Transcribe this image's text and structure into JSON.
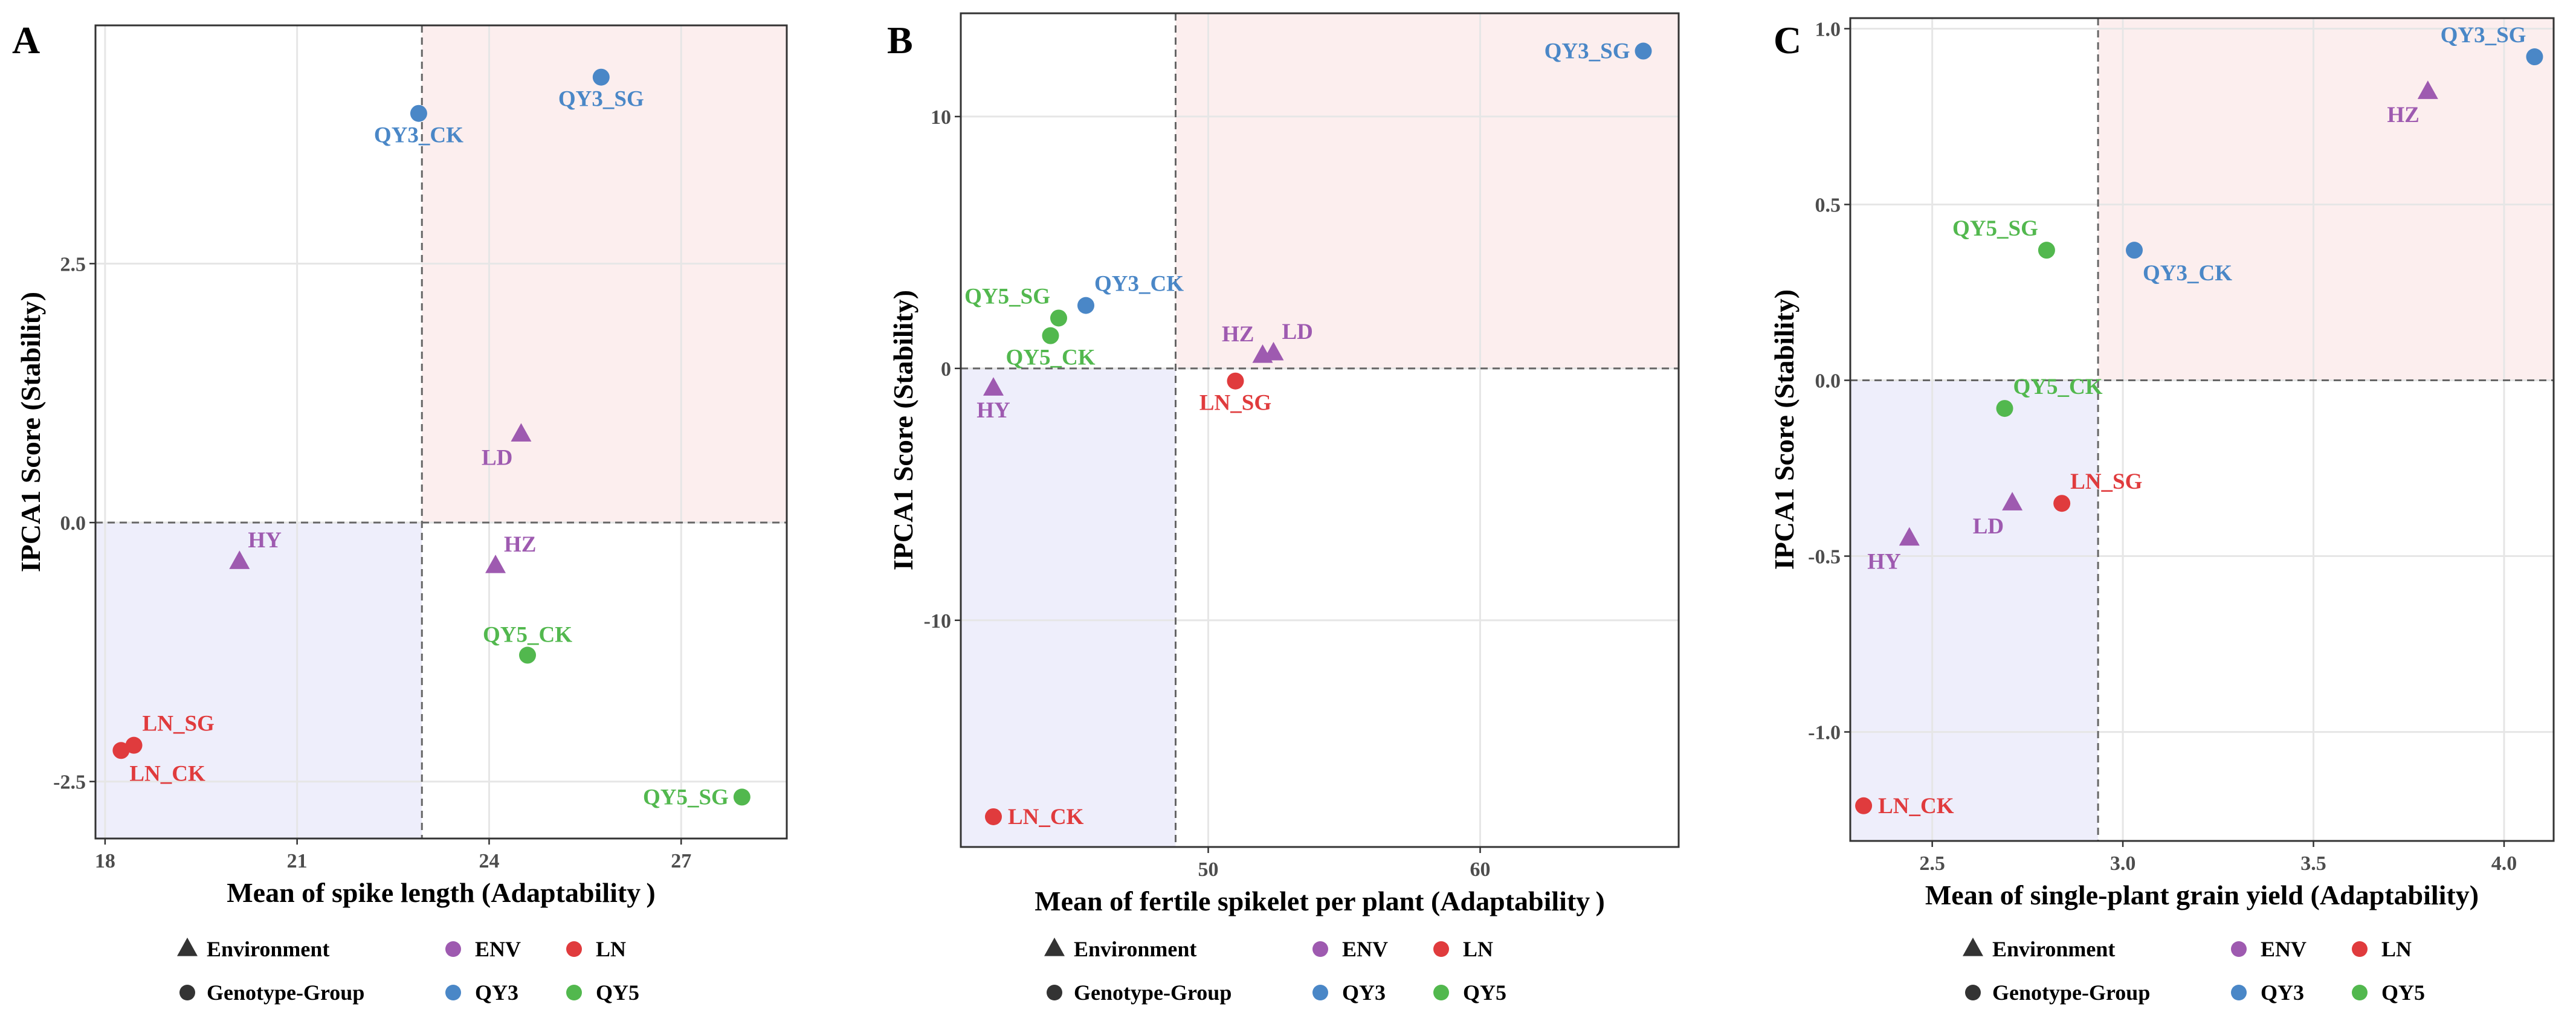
{
  "colors": {
    "ENV": "#9E5AB0",
    "QY3": "#4A87C7",
    "QY5": "#52B84E",
    "LN": "#E03B3D",
    "quad_pos": "#FCEEEE",
    "quad_neg": "#EEEEFB",
    "grid": "#E6E6E6",
    "tick_text": "#4d4d4d"
  },
  "legend": {
    "shape_entries": [
      {
        "label": "Environment",
        "shape": "triangle"
      },
      {
        "label": "Genotype-Group",
        "shape": "circle"
      }
    ],
    "color_entries_row1": [
      {
        "label": "ENV",
        "group": "ENV"
      },
      {
        "label": "LN",
        "group": "LN"
      }
    ],
    "color_entries_row2": [
      {
        "label": "QY3",
        "group": "QY3"
      },
      {
        "label": "QY5",
        "group": "QY5"
      }
    ]
  },
  "chart_data": [
    {
      "panel": "A",
      "type": "scatter",
      "xlabel": "Mean of spike length (Adaptability )",
      "ylabel": "IPCA1 Score (Stability)",
      "xlim": [
        17.85,
        28.65
      ],
      "ylim": [
        -3.05,
        4.8
      ],
      "xticks": [
        18,
        21,
        24,
        27
      ],
      "xtick_labels": [
        "18",
        "21",
        "24",
        "27"
      ],
      "yticks": [
        -2.5,
        0.0,
        2.5
      ],
      "ytick_labels": [
        "-2.5",
        "0.0",
        "2.5"
      ],
      "vline": 22.95,
      "hline": 0,
      "points": [
        {
          "label": "QY3_CK",
          "x": 22.9,
          "y": 3.95,
          "shape": "circle",
          "group": "QY3",
          "lpos": "below"
        },
        {
          "label": "QY3_SG",
          "x": 25.75,
          "y": 4.3,
          "shape": "circle",
          "group": "QY3",
          "lpos": "below"
        },
        {
          "label": "LD",
          "x": 24.5,
          "y": 0.85,
          "shape": "triangle",
          "group": "ENV",
          "lpos": "below-left"
        },
        {
          "label": "HY",
          "x": 20.1,
          "y": -0.38,
          "shape": "triangle",
          "group": "ENV",
          "lpos": "above-right"
        },
        {
          "label": "HZ",
          "x": 24.1,
          "y": -0.42,
          "shape": "triangle",
          "group": "ENV",
          "lpos": "above-right"
        },
        {
          "label": "QY5_CK",
          "x": 24.6,
          "y": -1.28,
          "shape": "circle",
          "group": "QY5",
          "lpos": "above"
        },
        {
          "label": "LN_SG",
          "x": 18.45,
          "y": -2.15,
          "shape": "circle",
          "group": "LN",
          "lpos": "above-right"
        },
        {
          "label": "LN_CK",
          "x": 18.25,
          "y": -2.2,
          "shape": "circle",
          "group": "LN",
          "lpos": "below-right"
        },
        {
          "label": "QY5_SG",
          "x": 27.95,
          "y": -2.65,
          "shape": "circle",
          "group": "QY5",
          "lpos": "left"
        }
      ]
    },
    {
      "panel": "B",
      "type": "scatter",
      "xlabel": "Mean of fertile spikelet per plant (Adaptability )",
      "ylabel": "IPCA1 Score (Stability)",
      "xlim": [
        40.9,
        67.3
      ],
      "ylim": [
        -19.0,
        14.1
      ],
      "xticks": [
        50,
        60
      ],
      "xtick_labels": [
        "50",
        "60"
      ],
      "yticks": [
        -10,
        0,
        10
      ],
      "ytick_labels": [
        "-10",
        "0",
        "10"
      ],
      "vline": 48.8,
      "hline": 0,
      "points": [
        {
          "label": "QY3_SG",
          "x": 66.0,
          "y": 12.6,
          "shape": "circle",
          "group": "QY3",
          "lpos": "left"
        },
        {
          "label": "QY3_CK",
          "x": 45.5,
          "y": 2.5,
          "shape": "circle",
          "group": "QY3",
          "lpos": "above-right"
        },
        {
          "label": "QY5_SG",
          "x": 44.5,
          "y": 2.0,
          "shape": "circle",
          "group": "QY5",
          "lpos": "above-left"
        },
        {
          "label": "QY5_CK",
          "x": 44.2,
          "y": 1.3,
          "shape": "circle",
          "group": "QY5",
          "lpos": "below"
        },
        {
          "label": "HZ",
          "x": 52.0,
          "y": 0.5,
          "shape": "triangle",
          "group": "ENV",
          "lpos": "above-left"
        },
        {
          "label": "LD",
          "x": 52.4,
          "y": 0.6,
          "shape": "triangle",
          "group": "ENV",
          "lpos": "above-right"
        },
        {
          "label": "HY",
          "x": 42.1,
          "y": -0.8,
          "shape": "triangle",
          "group": "ENV",
          "lpos": "below"
        },
        {
          "label": "LN_SG",
          "x": 51.0,
          "y": -0.5,
          "shape": "circle",
          "group": "LN",
          "lpos": "below"
        },
        {
          "label": "LN_CK",
          "x": 42.1,
          "y": -17.8,
          "shape": "circle",
          "group": "LN",
          "lpos": "right"
        }
      ]
    },
    {
      "panel": "C",
      "type": "scatter",
      "xlabel": "Mean of single-plant grain yield (Adaptability)",
      "ylabel": "IPCA1 Score (Stability)",
      "xlim": [
        2.285,
        4.13
      ],
      "ylim": [
        -1.31,
        1.03
      ],
      "xticks": [
        2.5,
        3.0,
        3.5,
        4.0
      ],
      "xtick_labels": [
        "2.5",
        "3.0",
        "3.5",
        "4.0"
      ],
      "yticks": [
        -1.0,
        -0.5,
        0.0,
        0.5,
        1.0
      ],
      "ytick_labels": [
        "-1.0",
        "-0.5",
        "0.0",
        "0.5",
        "1.0"
      ],
      "vline": 2.935,
      "hline": 0,
      "points": [
        {
          "label": "QY3_SG",
          "x": 4.08,
          "y": 0.92,
          "shape": "circle",
          "group": "QY3",
          "lpos": "above-left"
        },
        {
          "label": "HZ",
          "x": 3.8,
          "y": 0.82,
          "shape": "triangle",
          "group": "ENV",
          "lpos": "below-left"
        },
        {
          "label": "QY5_SG",
          "x": 2.8,
          "y": 0.37,
          "shape": "circle",
          "group": "QY5",
          "lpos": "above-left"
        },
        {
          "label": "QY3_CK",
          "x": 3.03,
          "y": 0.37,
          "shape": "circle",
          "group": "QY3",
          "lpos": "below-right"
        },
        {
          "label": "QY5_CK",
          "x": 2.69,
          "y": -0.08,
          "shape": "circle",
          "group": "QY5",
          "lpos": "above-right"
        },
        {
          "label": "LN_SG",
          "x": 2.84,
          "y": -0.35,
          "shape": "circle",
          "group": "LN",
          "lpos": "above-right"
        },
        {
          "label": "LD",
          "x": 2.71,
          "y": -0.35,
          "shape": "triangle",
          "group": "ENV",
          "lpos": "below-left"
        },
        {
          "label": "HY",
          "x": 2.44,
          "y": -0.45,
          "shape": "triangle",
          "group": "ENV",
          "lpos": "below-left"
        },
        {
          "label": "LN_CK",
          "x": 2.32,
          "y": -1.21,
          "shape": "circle",
          "group": "LN",
          "lpos": "right"
        }
      ]
    }
  ]
}
